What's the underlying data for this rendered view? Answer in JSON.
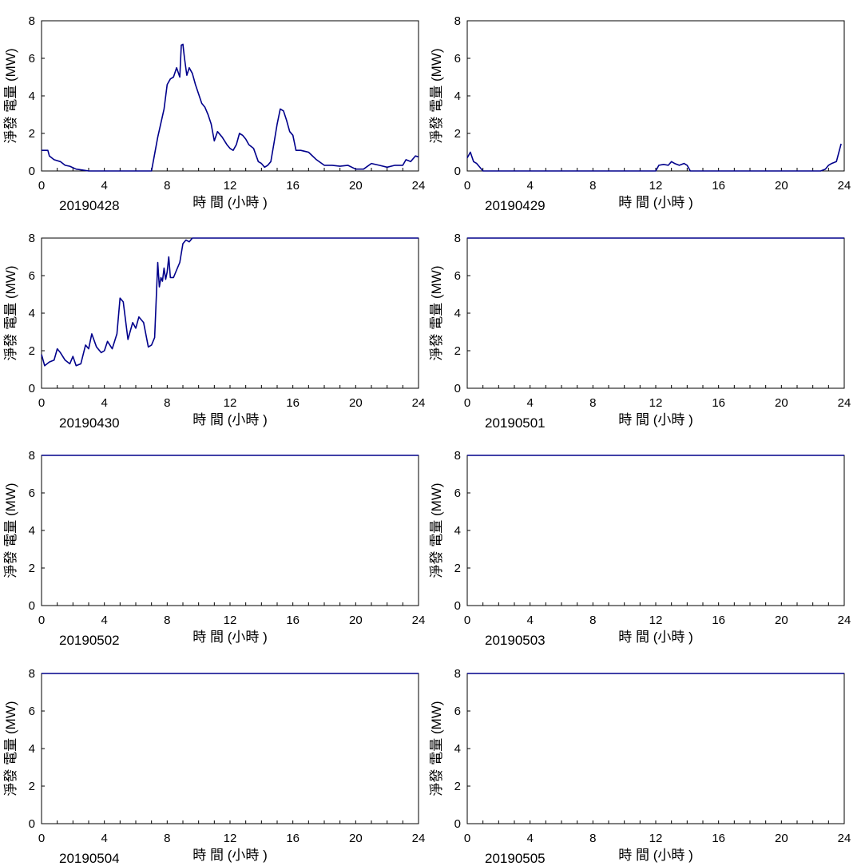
{
  "chart_data": [
    {
      "type": "line",
      "date_label": "20190428",
      "xlabel": "時 間 (小時 )",
      "ylabel": "淨發 電量 (MW)",
      "xlim": [
        0,
        24
      ],
      "ylim": [
        0,
        8
      ],
      "xticks": [
        0,
        4,
        8,
        12,
        16,
        20,
        24
      ],
      "yticks": [
        0,
        2,
        4,
        6,
        8
      ],
      "line_color": "#00008B",
      "series": [
        {
          "x": [
            0,
            0.4,
            0.5,
            0.8,
            1.2,
            1.5,
            1.8,
            2.2,
            2.6,
            3,
            3.5,
            4,
            5,
            6,
            7,
            7.2,
            7.4,
            7.8,
            8,
            8.2,
            8.4,
            8.6,
            8.8,
            8.9,
            9.0,
            9.1,
            9.25,
            9.4,
            9.6,
            9.8,
            10,
            10.2,
            10.4,
            10.6,
            10.8,
            11,
            11.2,
            11.5,
            11.8,
            12,
            12.2,
            12.4,
            12.6,
            12.8,
            13,
            13.2,
            13.5,
            13.8,
            14,
            14.2,
            14.4,
            14.6,
            14.8,
            15,
            15.2,
            15.4,
            15.6,
            15.8,
            16,
            16.2,
            16.5,
            17,
            17.5,
            18,
            18.5,
            19,
            19.5,
            20,
            20.2,
            20.5,
            21,
            21.5,
            22,
            22.5,
            23,
            23.2,
            23.5,
            23.8,
            24
          ],
          "y": [
            1.1,
            1.1,
            0.8,
            0.6,
            0.5,
            0.3,
            0.25,
            0.1,
            0.05,
            0,
            0,
            0,
            0,
            0,
            0,
            0.9,
            1.8,
            3.3,
            4.6,
            4.9,
            5.0,
            5.5,
            5.0,
            6.7,
            6.75,
            6.0,
            5.1,
            5.5,
            5.2,
            4.6,
            4.1,
            3.6,
            3.4,
            3.0,
            2.5,
            1.6,
            2.1,
            1.8,
            1.4,
            1.2,
            1.1,
            1.4,
            2.0,
            1.9,
            1.7,
            1.4,
            1.2,
            0.5,
            0.4,
            0.2,
            0.3,
            0.5,
            1.5,
            2.5,
            3.3,
            3.2,
            2.7,
            2.1,
            1.9,
            1.1,
            1.1,
            1.0,
            0.6,
            0.3,
            0.3,
            0.25,
            0.3,
            0.1,
            0.1,
            0.1,
            0.4,
            0.3,
            0.2,
            0.3,
            0.3,
            0.6,
            0.5,
            0.8,
            0.75
          ]
        }
      ]
    },
    {
      "type": "line",
      "date_label": "20190429",
      "xlabel": "時 間 (小時 )",
      "ylabel": "淨發 電量 (MW)",
      "xlim": [
        0,
        24
      ],
      "ylim": [
        0,
        8
      ],
      "xticks": [
        0,
        4,
        8,
        12,
        16,
        20,
        24
      ],
      "yticks": [
        0,
        2,
        4,
        6,
        8
      ],
      "line_color": "#00008B",
      "series": [
        {
          "x": [
            0,
            0.2,
            0.4,
            0.6,
            0.8,
            1,
            1.2,
            12,
            12.2,
            12.5,
            12.8,
            13,
            13.2,
            13.5,
            13.8,
            14,
            14.2,
            22.5,
            22.8,
            23,
            23.2,
            23.5,
            23.8
          ],
          "y": [
            0.7,
            1.0,
            0.5,
            0.4,
            0.2,
            0,
            0,
            0,
            0.3,
            0.35,
            0.3,
            0.5,
            0.4,
            0.3,
            0.4,
            0.3,
            0,
            0,
            0.1,
            0.3,
            0.4,
            0.5,
            1.45
          ]
        }
      ]
    },
    {
      "type": "line",
      "date_label": "20190430",
      "xlabel": "時 間 (小時 )",
      "ylabel": "淨發 電量 (MW)",
      "xlim": [
        0,
        24
      ],
      "ylim": [
        0,
        8
      ],
      "xticks": [
        0,
        4,
        8,
        12,
        16,
        20,
        24
      ],
      "yticks": [
        0,
        2,
        4,
        6,
        8
      ],
      "line_color": "#00008B",
      "series": [
        {
          "x": [
            0,
            0.2,
            0.5,
            0.8,
            1,
            1.2,
            1.5,
            1.8,
            2,
            2.2,
            2.5,
            2.8,
            3,
            3.2,
            3.5,
            3.8,
            4,
            4.2,
            4.5,
            4.8,
            5,
            5.2,
            5.5,
            5.8,
            6,
            6.2,
            6.5,
            6.8,
            7,
            7.2,
            7.4,
            7.5,
            7.6,
            7.7,
            7.8,
            7.9,
            8,
            8.1,
            8.2,
            8.4,
            8.6,
            8.8,
            9,
            9.2,
            9.4,
            9.6,
            9.8,
            24
          ],
          "y": [
            1.8,
            1.2,
            1.4,
            1.5,
            2.1,
            1.9,
            1.5,
            1.3,
            1.7,
            1.2,
            1.3,
            2.3,
            2.1,
            2.9,
            2.2,
            1.9,
            2.0,
            2.5,
            2.1,
            2.9,
            4.8,
            4.6,
            2.6,
            3.5,
            3.2,
            3.8,
            3.5,
            2.2,
            2.3,
            2.7,
            6.7,
            5.4,
            5.9,
            5.7,
            6.4,
            5.8,
            6.2,
            7.0,
            5.9,
            5.9,
            6.3,
            6.7,
            7.7,
            7.9,
            7.8,
            8.0,
            8.0,
            8.0
          ]
        }
      ]
    },
    {
      "type": "line",
      "date_label": "20190501",
      "xlabel": "時 間 (小時 )",
      "ylabel": "淨發 電量 (MW)",
      "xlim": [
        0,
        24
      ],
      "ylim": [
        0,
        8
      ],
      "xticks": [
        0,
        4,
        8,
        12,
        16,
        20,
        24
      ],
      "yticks": [
        0,
        2,
        4,
        6,
        8
      ],
      "line_color": "#00008B",
      "series": [
        {
          "x": [
            0,
            24
          ],
          "y": [
            8,
            8
          ]
        }
      ]
    },
    {
      "type": "line",
      "date_label": "20190502",
      "xlabel": "時 間 (小時 )",
      "ylabel": "淨發 電量 (MW)",
      "xlim": [
        0,
        24
      ],
      "ylim": [
        0,
        8
      ],
      "xticks": [
        0,
        4,
        8,
        12,
        16,
        20,
        24
      ],
      "yticks": [
        0,
        2,
        4,
        6,
        8
      ],
      "line_color": "#00008B",
      "series": [
        {
          "x": [
            0,
            24
          ],
          "y": [
            8,
            8
          ]
        }
      ]
    },
    {
      "type": "line",
      "date_label": "20190503",
      "xlabel": "時 間 (小時 )",
      "ylabel": "淨發 電量 (MW)",
      "xlim": [
        0,
        24
      ],
      "ylim": [
        0,
        8
      ],
      "xticks": [
        0,
        4,
        8,
        12,
        16,
        20,
        24
      ],
      "yticks": [
        0,
        2,
        4,
        6,
        8
      ],
      "line_color": "#00008B",
      "series": [
        {
          "x": [
            0,
            24
          ],
          "y": [
            8,
            8
          ]
        }
      ]
    },
    {
      "type": "line",
      "date_label": "20190504",
      "xlabel": "時 間 (小時 )",
      "ylabel": "淨發 電量 (MW)",
      "xlim": [
        0,
        24
      ],
      "ylim": [
        0,
        8
      ],
      "xticks": [
        0,
        4,
        8,
        12,
        16,
        20,
        24
      ],
      "yticks": [
        0,
        2,
        4,
        6,
        8
      ],
      "line_color": "#00008B",
      "series": [
        {
          "x": [
            0,
            24
          ],
          "y": [
            8,
            8
          ]
        }
      ]
    },
    {
      "type": "line",
      "date_label": "20190505",
      "xlabel": "時 間 (小時 )",
      "ylabel": "淨發 電量 (MW)",
      "xlim": [
        0,
        24
      ],
      "ylim": [
        0,
        8
      ],
      "xticks": [
        0,
        4,
        8,
        12,
        16,
        20,
        24
      ],
      "yticks": [
        0,
        2,
        4,
        6,
        8
      ],
      "line_color": "#00008B",
      "series": [
        {
          "x": [
            0,
            24
          ],
          "y": [
            8,
            8
          ]
        }
      ]
    }
  ]
}
